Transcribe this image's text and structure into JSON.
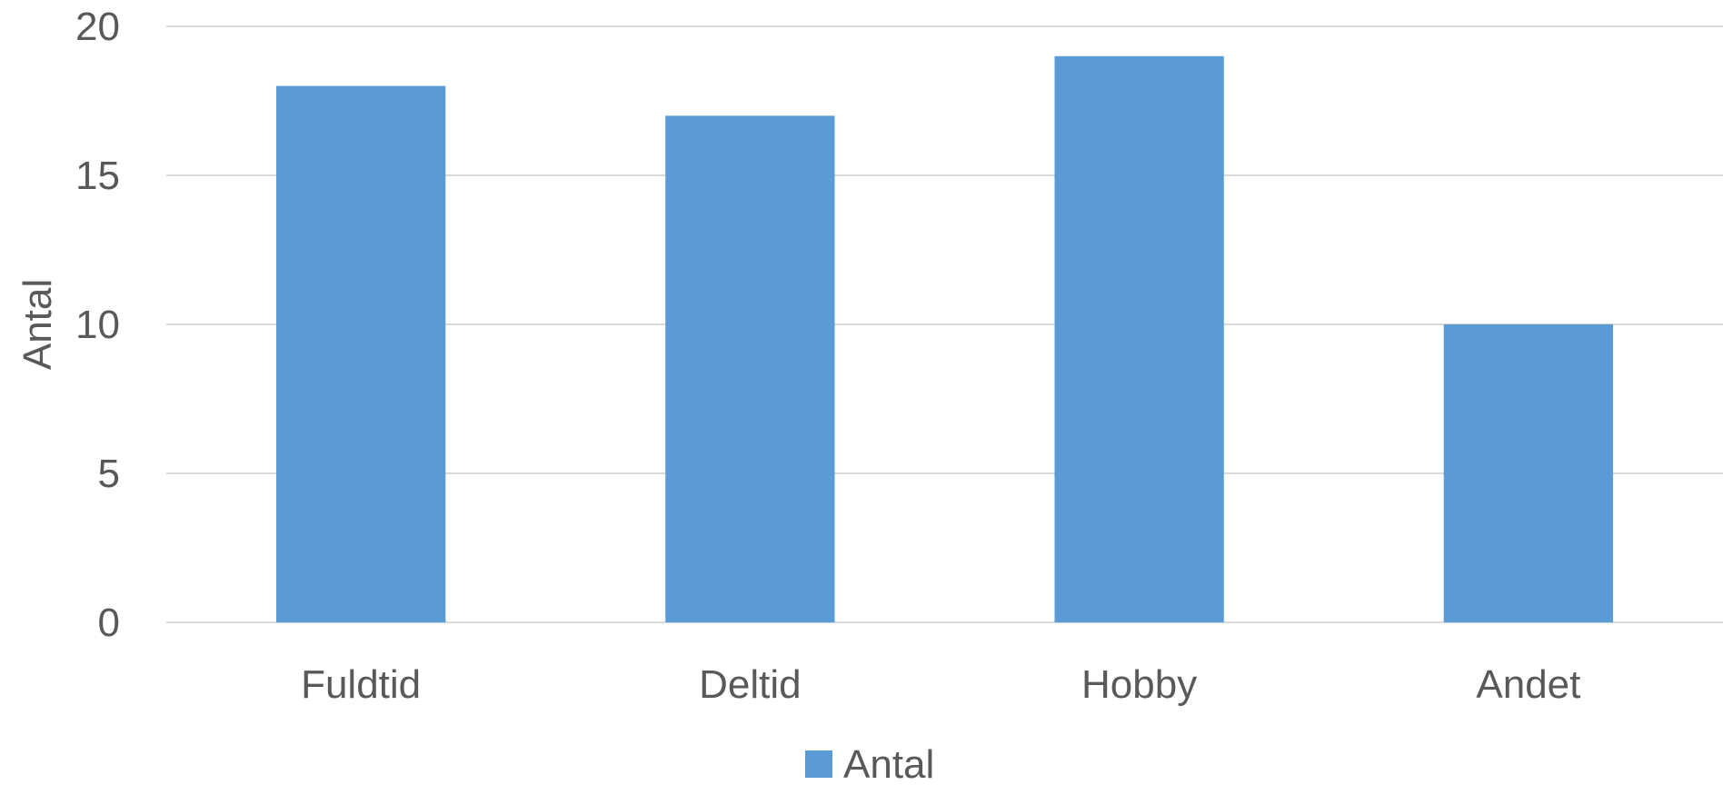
{
  "chart_data": {
    "type": "bar",
    "categories": [
      "Fuldtid",
      "Deltid",
      "Hobby",
      "Andet"
    ],
    "series": [
      {
        "name": "Antal",
        "values": [
          18,
          17,
          19,
          10
        ],
        "color": "#5b9bd5"
      }
    ],
    "title": "",
    "xlabel": "",
    "ylabel": "Antal",
    "ylim": [
      0,
      20
    ],
    "yticks": [
      0,
      5,
      10,
      15,
      20
    ],
    "grid": true,
    "legend_position": "bottom"
  }
}
